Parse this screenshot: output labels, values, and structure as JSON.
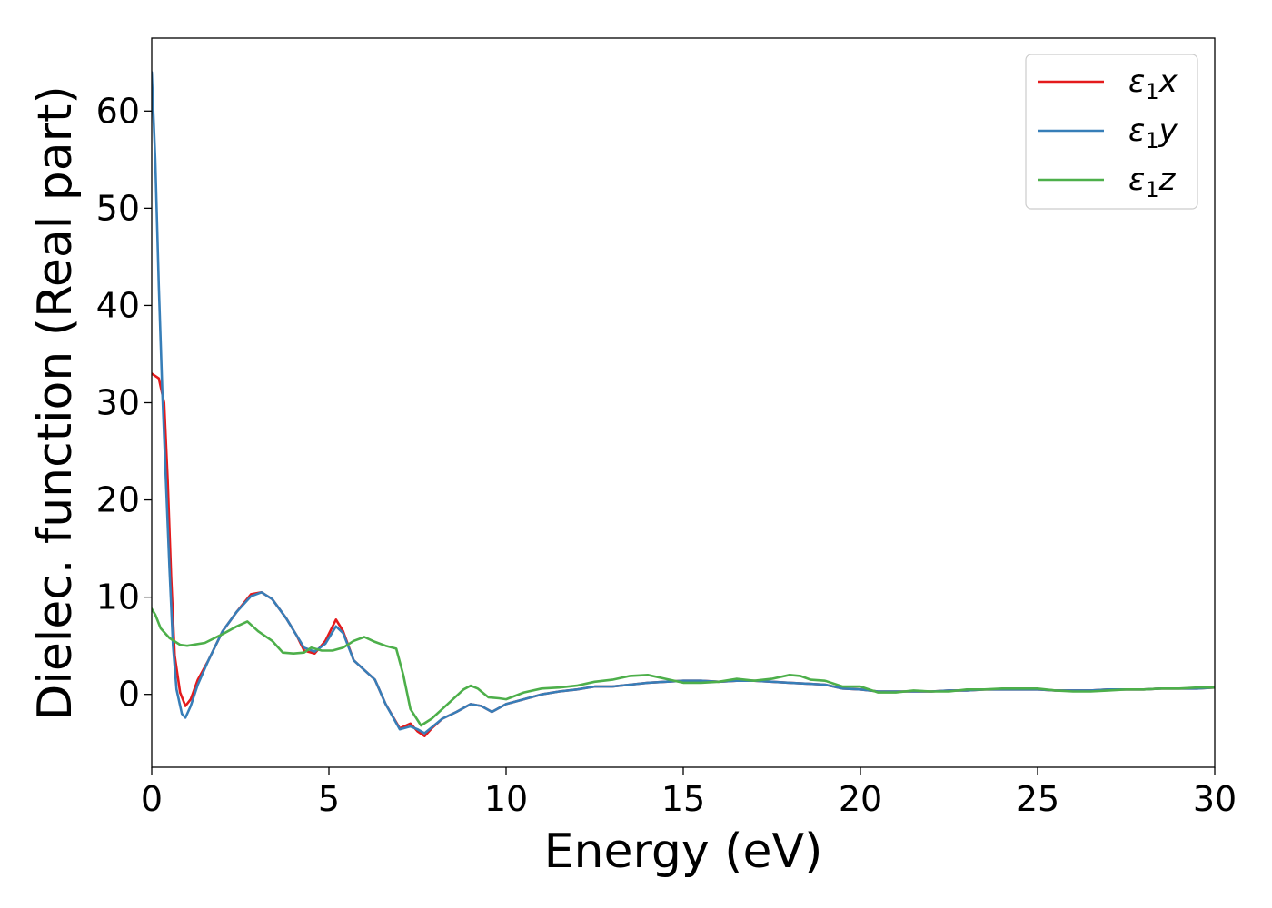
{
  "chart_data": {
    "type": "line",
    "xlabel": "Energy (eV)",
    "ylabel": "Dielec. function (Real part)",
    "xlim": [
      0,
      30
    ],
    "ylim": [
      -7.5,
      67.5
    ],
    "xticks": [
      0,
      5,
      10,
      15,
      20,
      25,
      30
    ],
    "xtick_labels": [
      "0",
      "5",
      "10",
      "15",
      "20",
      "25",
      "30"
    ],
    "yticks": [
      0,
      10,
      20,
      30,
      40,
      50,
      60
    ],
    "ytick_labels": [
      "0",
      "10",
      "20",
      "30",
      "40",
      "50",
      "60"
    ],
    "grid": false,
    "legend_position": "top-right",
    "series": [
      {
        "name_base": "ε",
        "name_sub": "1",
        "name_suffix": "x",
        "color": "#e41a1c",
        "points": [
          [
            0,
            33
          ],
          [
            0.2,
            32.5
          ],
          [
            0.35,
            30
          ],
          [
            0.45,
            22
          ],
          [
            0.55,
            12
          ],
          [
            0.65,
            4
          ],
          [
            0.8,
            0.2
          ],
          [
            0.95,
            -1.2
          ],
          [
            1.1,
            -0.5
          ],
          [
            1.3,
            1.5
          ],
          [
            1.6,
            3.5
          ],
          [
            2.0,
            6.5
          ],
          [
            2.4,
            8.5
          ],
          [
            2.8,
            10.3
          ],
          [
            3.1,
            10.5
          ],
          [
            3.4,
            9.8
          ],
          [
            3.8,
            7.8
          ],
          [
            4.1,
            6.0
          ],
          [
            4.3,
            4.5
          ],
          [
            4.6,
            4.2
          ],
          [
            4.9,
            5.5
          ],
          [
            5.2,
            7.7
          ],
          [
            5.4,
            6.5
          ],
          [
            5.7,
            3.5
          ],
          [
            6.0,
            2.5
          ],
          [
            6.3,
            1.5
          ],
          [
            6.6,
            -1.0
          ],
          [
            7.0,
            -3.5
          ],
          [
            7.3,
            -3.0
          ],
          [
            7.5,
            -3.8
          ],
          [
            7.7,
            -4.3
          ],
          [
            7.9,
            -3.5
          ],
          [
            8.2,
            -2.5
          ],
          [
            8.6,
            -1.8
          ],
          [
            9.0,
            -1.0
          ],
          [
            9.3,
            -1.2
          ],
          [
            9.6,
            -1.8
          ],
          [
            10.0,
            -1.0
          ],
          [
            10.5,
            -0.5
          ],
          [
            11.0,
            0.0
          ],
          [
            11.5,
            0.3
          ],
          [
            12.0,
            0.5
          ],
          [
            12.5,
            0.8
          ],
          [
            13.0,
            0.8
          ],
          [
            13.5,
            1.0
          ],
          [
            14.0,
            1.2
          ],
          [
            14.5,
            1.3
          ],
          [
            15.0,
            1.4
          ],
          [
            15.5,
            1.4
          ],
          [
            16.0,
            1.3
          ],
          [
            16.5,
            1.4
          ],
          [
            17.0,
            1.4
          ],
          [
            17.5,
            1.3
          ],
          [
            18.0,
            1.2
          ],
          [
            18.5,
            1.1
          ],
          [
            19.0,
            1.0
          ],
          [
            19.5,
            0.6
          ],
          [
            20.0,
            0.5
          ],
          [
            20.5,
            0.3
          ],
          [
            21.0,
            0.3
          ],
          [
            21.5,
            0.3
          ],
          [
            22.0,
            0.3
          ],
          [
            22.5,
            0.4
          ],
          [
            23.0,
            0.4
          ],
          [
            23.5,
            0.5
          ],
          [
            24.0,
            0.5
          ],
          [
            24.5,
            0.5
          ],
          [
            25.0,
            0.5
          ],
          [
            25.5,
            0.4
          ],
          [
            26.0,
            0.4
          ],
          [
            26.5,
            0.4
          ],
          [
            27.0,
            0.5
          ],
          [
            27.5,
            0.5
          ],
          [
            28.0,
            0.5
          ],
          [
            28.5,
            0.6
          ],
          [
            29.0,
            0.6
          ],
          [
            29.5,
            0.6
          ],
          [
            30.0,
            0.7
          ]
        ]
      },
      {
        "name_base": "ε",
        "name_sub": "1",
        "name_suffix": "y",
        "color": "#377eb8",
        "points": [
          [
            0,
            64
          ],
          [
            0.1,
            55
          ],
          [
            0.2,
            42
          ],
          [
            0.3,
            31
          ],
          [
            0.4,
            22
          ],
          [
            0.5,
            13
          ],
          [
            0.6,
            5
          ],
          [
            0.7,
            0.5
          ],
          [
            0.85,
            -2.0
          ],
          [
            0.95,
            -2.4
          ],
          [
            1.1,
            -1.2
          ],
          [
            1.3,
            1.0
          ],
          [
            1.6,
            3.5
          ],
          [
            2.0,
            6.5
          ],
          [
            2.4,
            8.5
          ],
          [
            2.8,
            10.1
          ],
          [
            3.1,
            10.5
          ],
          [
            3.4,
            9.8
          ],
          [
            3.8,
            7.8
          ],
          [
            4.1,
            6.0
          ],
          [
            4.3,
            4.8
          ],
          [
            4.6,
            4.4
          ],
          [
            4.9,
            5.2
          ],
          [
            5.2,
            7.0
          ],
          [
            5.4,
            6.3
          ],
          [
            5.7,
            3.5
          ],
          [
            6.0,
            2.5
          ],
          [
            6.3,
            1.5
          ],
          [
            6.6,
            -1.0
          ],
          [
            7.0,
            -3.6
          ],
          [
            7.3,
            -3.3
          ],
          [
            7.5,
            -3.6
          ],
          [
            7.7,
            -4.0
          ],
          [
            7.9,
            -3.4
          ],
          [
            8.2,
            -2.5
          ],
          [
            8.6,
            -1.8
          ],
          [
            9.0,
            -1.0
          ],
          [
            9.3,
            -1.2
          ],
          [
            9.6,
            -1.8
          ],
          [
            10.0,
            -1.0
          ],
          [
            10.5,
            -0.5
          ],
          [
            11.0,
            0.0
          ],
          [
            11.5,
            0.3
          ],
          [
            12.0,
            0.5
          ],
          [
            12.5,
            0.8
          ],
          [
            13.0,
            0.8
          ],
          [
            13.5,
            1.0
          ],
          [
            14.0,
            1.2
          ],
          [
            14.5,
            1.3
          ],
          [
            15.0,
            1.4
          ],
          [
            15.5,
            1.4
          ],
          [
            16.0,
            1.3
          ],
          [
            16.5,
            1.4
          ],
          [
            17.0,
            1.4
          ],
          [
            17.5,
            1.3
          ],
          [
            18.0,
            1.2
          ],
          [
            18.5,
            1.1
          ],
          [
            19.0,
            1.0
          ],
          [
            19.5,
            0.6
          ],
          [
            20.0,
            0.5
          ],
          [
            20.5,
            0.3
          ],
          [
            21.0,
            0.3
          ],
          [
            21.5,
            0.3
          ],
          [
            22.0,
            0.3
          ],
          [
            22.5,
            0.4
          ],
          [
            23.0,
            0.4
          ],
          [
            23.5,
            0.5
          ],
          [
            24.0,
            0.5
          ],
          [
            24.5,
            0.5
          ],
          [
            25.0,
            0.5
          ],
          [
            25.5,
            0.4
          ],
          [
            26.0,
            0.4
          ],
          [
            26.5,
            0.4
          ],
          [
            27.0,
            0.5
          ],
          [
            27.5,
            0.5
          ],
          [
            28.0,
            0.5
          ],
          [
            28.5,
            0.6
          ],
          [
            29.0,
            0.6
          ],
          [
            29.5,
            0.6
          ],
          [
            30.0,
            0.7
          ]
        ]
      },
      {
        "name_base": "ε",
        "name_sub": "1",
        "name_suffix": "z",
        "color": "#4daf4a",
        "points": [
          [
            0,
            8.8
          ],
          [
            0.1,
            8.2
          ],
          [
            0.25,
            6.8
          ],
          [
            0.5,
            5.8
          ],
          [
            0.8,
            5.1
          ],
          [
            1.0,
            5.0
          ],
          [
            1.5,
            5.3
          ],
          [
            2.0,
            6.2
          ],
          [
            2.4,
            7.0
          ],
          [
            2.7,
            7.5
          ],
          [
            3.0,
            6.5
          ],
          [
            3.4,
            5.5
          ],
          [
            3.7,
            4.3
          ],
          [
            4.0,
            4.2
          ],
          [
            4.3,
            4.3
          ],
          [
            4.5,
            4.8
          ],
          [
            4.8,
            4.5
          ],
          [
            5.1,
            4.5
          ],
          [
            5.4,
            4.8
          ],
          [
            5.7,
            5.5
          ],
          [
            6.0,
            5.9
          ],
          [
            6.3,
            5.4
          ],
          [
            6.6,
            5.0
          ],
          [
            6.9,
            4.7
          ],
          [
            7.1,
            2.0
          ],
          [
            7.3,
            -1.5
          ],
          [
            7.6,
            -3.2
          ],
          [
            7.9,
            -2.5
          ],
          [
            8.2,
            -1.5
          ],
          [
            8.5,
            -0.5
          ],
          [
            8.8,
            0.5
          ],
          [
            9.0,
            0.9
          ],
          [
            9.2,
            0.6
          ],
          [
            9.5,
            -0.3
          ],
          [
            9.8,
            -0.4
          ],
          [
            10.0,
            -0.5
          ],
          [
            10.5,
            0.2
          ],
          [
            11.0,
            0.6
          ],
          [
            11.5,
            0.7
          ],
          [
            12.0,
            0.9
          ],
          [
            12.5,
            1.3
          ],
          [
            13.0,
            1.5
          ],
          [
            13.5,
            1.9
          ],
          [
            14.0,
            2.0
          ],
          [
            14.5,
            1.6
          ],
          [
            15.0,
            1.2
          ],
          [
            15.5,
            1.2
          ],
          [
            16.0,
            1.3
          ],
          [
            16.5,
            1.6
          ],
          [
            17.0,
            1.4
          ],
          [
            17.5,
            1.6
          ],
          [
            18.0,
            2.0
          ],
          [
            18.3,
            1.9
          ],
          [
            18.6,
            1.5
          ],
          [
            19.0,
            1.4
          ],
          [
            19.5,
            0.8
          ],
          [
            20.0,
            0.8
          ],
          [
            20.5,
            0.2
          ],
          [
            21.0,
            0.2
          ],
          [
            21.5,
            0.4
          ],
          [
            22.0,
            0.3
          ],
          [
            22.5,
            0.3
          ],
          [
            23.0,
            0.5
          ],
          [
            23.5,
            0.5
          ],
          [
            24.0,
            0.6
          ],
          [
            24.5,
            0.6
          ],
          [
            25.0,
            0.6
          ],
          [
            25.5,
            0.4
          ],
          [
            26.0,
            0.3
          ],
          [
            26.5,
            0.3
          ],
          [
            27.0,
            0.4
          ],
          [
            27.5,
            0.5
          ],
          [
            28.0,
            0.5
          ],
          [
            28.5,
            0.6
          ],
          [
            29.0,
            0.6
          ],
          [
            29.5,
            0.7
          ],
          [
            30.0,
            0.7
          ]
        ]
      }
    ]
  }
}
